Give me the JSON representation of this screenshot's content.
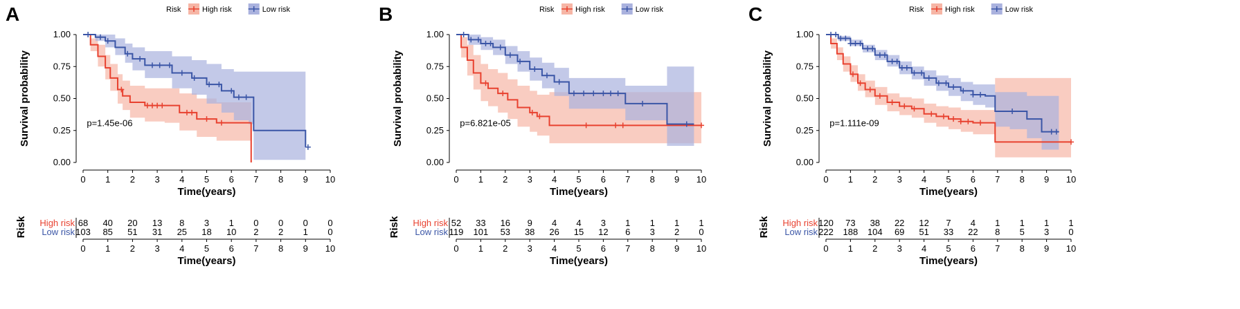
{
  "colors": {
    "high": "#e8412f",
    "low": "#3a55a6",
    "high_fill": "#f6b6a6",
    "low_fill": "#aab2de"
  },
  "chart_data": [
    {
      "type": "line",
      "panel": "A",
      "legend": {
        "title": "Risk",
        "entries": [
          "High risk",
          "Low risk"
        ],
        "placement": "top"
      },
      "xlabel": "Time(years)",
      "ylabel": "Survival probability",
      "xlim": [
        0,
        10
      ],
      "ylim": [
        0,
        1
      ],
      "xticks": [
        "0",
        "1",
        "2",
        "3",
        "4",
        "5",
        "6",
        "7",
        "8",
        "9",
        "10"
      ],
      "yticks": [
        "0.00",
        "0.25",
        "0.50",
        "0.75",
        "1.00"
      ],
      "pvalue": "p=1.45e-06",
      "series": [
        {
          "name": "High risk",
          "x": [
            0,
            0.3,
            0.6,
            0.9,
            1.1,
            1.4,
            1.6,
            1.9,
            2.5,
            3.3,
            3.9,
            4.6,
            5.4,
            6.0,
            6.75,
            6.8
          ],
          "y": [
            1.0,
            0.92,
            0.83,
            0.74,
            0.66,
            0.57,
            0.52,
            0.47,
            0.445,
            0.445,
            0.39,
            0.34,
            0.31,
            0.31,
            0.31,
            0.0
          ],
          "lower": [
            1.0,
            0.87,
            0.75,
            0.65,
            0.56,
            0.46,
            0.41,
            0.35,
            0.32,
            0.31,
            0.25,
            0.2,
            0.17,
            0.17,
            0.17,
            0.0
          ],
          "upper": [
            1.0,
            0.97,
            0.92,
            0.84,
            0.77,
            0.69,
            0.64,
            0.6,
            0.58,
            0.58,
            0.54,
            0.5,
            0.47,
            0.47,
            0.47,
            0.0
          ],
          "censor_x": [
            1.55,
            2.6,
            2.8,
            3.0,
            3.2,
            4.2,
            4.4,
            5.0,
            5.6
          ]
        },
        {
          "name": "Low risk",
          "x": [
            0,
            0.5,
            0.9,
            1.3,
            1.7,
            2.0,
            2.5,
            3.1,
            3.6,
            4.4,
            5.0,
            5.6,
            6.1,
            6.7,
            6.9,
            9.0
          ],
          "y": [
            1.0,
            0.98,
            0.95,
            0.9,
            0.85,
            0.81,
            0.76,
            0.76,
            0.7,
            0.66,
            0.61,
            0.56,
            0.51,
            0.51,
            0.25,
            0.12
          ],
          "lower": [
            1.0,
            0.95,
            0.9,
            0.84,
            0.78,
            0.72,
            0.66,
            0.66,
            0.58,
            0.53,
            0.46,
            0.39,
            0.33,
            0.3,
            0.02,
            0.02
          ],
          "upper": [
            1.0,
            1.0,
            1.0,
            0.97,
            0.93,
            0.9,
            0.87,
            0.87,
            0.83,
            0.8,
            0.77,
            0.73,
            0.71,
            0.71,
            0.71,
            0.71
          ],
          "censor_x": [
            0.2,
            0.7,
            1.0,
            1.8,
            2.3,
            2.8,
            3.1,
            3.5,
            4.0,
            4.5,
            5.1,
            5.5,
            6.0,
            6.3,
            6.6,
            9.1
          ]
        }
      ],
      "risk_table": {
        "title": "Risk",
        "xlabel": "Time(years)",
        "groups": [
          "High risk",
          "Low risk"
        ],
        "times": [
          "0",
          "1",
          "2",
          "3",
          "4",
          "5",
          "6",
          "7",
          "8",
          "9",
          "10"
        ],
        "high": [
          "68",
          "40",
          "20",
          "13",
          "8",
          "3",
          "1",
          "0",
          "0",
          "0",
          "0"
        ],
        "low": [
          "103",
          "85",
          "51",
          "31",
          "25",
          "18",
          "10",
          "2",
          "2",
          "1",
          "0"
        ]
      }
    },
    {
      "type": "line",
      "panel": "B",
      "legend": {
        "title": "Risk",
        "entries": [
          "High risk",
          "Low risk"
        ],
        "placement": "top"
      },
      "xlabel": "Time(years)",
      "ylabel": "Survival probability",
      "xlim": [
        0,
        10
      ],
      "ylim": [
        0,
        1
      ],
      "xticks": [
        "0",
        "1",
        "2",
        "3",
        "4",
        "5",
        "6",
        "7",
        "8",
        "9",
        "10"
      ],
      "yticks": [
        "0.00",
        "0.25",
        "0.50",
        "0.75",
        "1.00"
      ],
      "pvalue": "p=6.821e-05",
      "series": [
        {
          "name": "High risk",
          "x": [
            0,
            0.2,
            0.45,
            0.7,
            1.0,
            1.3,
            1.7,
            2.1,
            2.5,
            3.0,
            3.3,
            3.8,
            10.0
          ],
          "y": [
            1.0,
            0.9,
            0.8,
            0.7,
            0.62,
            0.58,
            0.54,
            0.49,
            0.43,
            0.39,
            0.36,
            0.29,
            0.29
          ],
          "lower": [
            1.0,
            0.82,
            0.68,
            0.57,
            0.48,
            0.44,
            0.39,
            0.34,
            0.28,
            0.24,
            0.21,
            0.15,
            0.15
          ],
          "upper": [
            1.0,
            0.98,
            0.92,
            0.84,
            0.77,
            0.73,
            0.7,
            0.65,
            0.6,
            0.56,
            0.53,
            0.55,
            0.55
          ],
          "censor_x": [
            1.2,
            1.9,
            3.1,
            3.4,
            5.3,
            6.5,
            6.8,
            10.0
          ]
        },
        {
          "name": "Low risk",
          "x": [
            0,
            0.5,
            1.0,
            1.5,
            2.0,
            2.5,
            3.0,
            3.5,
            4.0,
            4.6,
            6.9,
            8.6,
            9.7
          ],
          "y": [
            1.0,
            0.96,
            0.93,
            0.9,
            0.84,
            0.79,
            0.73,
            0.68,
            0.63,
            0.54,
            0.46,
            0.3,
            0.3
          ],
          "lower": [
            1.0,
            0.92,
            0.88,
            0.84,
            0.77,
            0.71,
            0.64,
            0.58,
            0.52,
            0.42,
            0.33,
            0.13,
            0.13
          ],
          "upper": [
            1.0,
            1.0,
            0.98,
            0.96,
            0.91,
            0.87,
            0.82,
            0.78,
            0.74,
            0.66,
            0.6,
            0.75,
            0.75
          ],
          "censor_x": [
            0.3,
            0.6,
            0.9,
            1.2,
            1.4,
            1.8,
            2.2,
            2.6,
            3.2,
            3.7,
            4.2,
            4.8,
            5.2,
            5.6,
            6.0,
            6.3,
            6.6,
            7.6,
            9.4
          ]
        }
      ],
      "risk_table": {
        "title": "Risk",
        "xlabel": "Time(years)",
        "groups": [
          "High risk",
          "Low risk"
        ],
        "times": [
          "0",
          "1",
          "2",
          "3",
          "4",
          "5",
          "6",
          "7",
          "8",
          "9",
          "10"
        ],
        "high": [
          "52",
          "33",
          "16",
          "9",
          "4",
          "4",
          "3",
          "1",
          "1",
          "1",
          "1"
        ],
        "low": [
          "119",
          "101",
          "53",
          "38",
          "26",
          "15",
          "12",
          "6",
          "3",
          "2",
          "0"
        ]
      }
    },
    {
      "type": "line",
      "panel": "C",
      "legend": {
        "title": "Risk",
        "entries": [
          "High risk",
          "Low risk"
        ],
        "placement": "top"
      },
      "xlabel": "Time(years)",
      "ylabel": "Survival probability",
      "xlim": [
        0,
        10
      ],
      "ylim": [
        0,
        1
      ],
      "xticks": [
        "0",
        "1",
        "2",
        "3",
        "4",
        "5",
        "6",
        "7",
        "8",
        "9",
        "10"
      ],
      "yticks": [
        "0.00",
        "0.25",
        "0.50",
        "0.75",
        "1.00"
      ],
      "pvalue": "p=1.111e-09",
      "series": [
        {
          "name": "High risk",
          "x": [
            0,
            0.2,
            0.45,
            0.7,
            1.0,
            1.3,
            1.6,
            2.0,
            2.5,
            3.0,
            3.5,
            4.0,
            4.5,
            5.0,
            5.5,
            6.0,
            6.9,
            10.0
          ],
          "y": [
            1.0,
            0.93,
            0.85,
            0.77,
            0.69,
            0.62,
            0.57,
            0.52,
            0.47,
            0.44,
            0.42,
            0.38,
            0.36,
            0.34,
            0.32,
            0.31,
            0.16,
            0.16
          ],
          "lower": [
            1.0,
            0.89,
            0.8,
            0.71,
            0.63,
            0.56,
            0.51,
            0.45,
            0.4,
            0.37,
            0.35,
            0.31,
            0.28,
            0.26,
            0.24,
            0.22,
            0.04,
            0.04
          ],
          "upper": [
            1.0,
            0.97,
            0.9,
            0.83,
            0.76,
            0.69,
            0.64,
            0.59,
            0.54,
            0.51,
            0.5,
            0.46,
            0.44,
            0.43,
            0.41,
            0.41,
            0.66,
            0.66
          ],
          "censor_x": [
            1.1,
            1.4,
            1.8,
            2.2,
            2.7,
            3.2,
            3.6,
            4.3,
            4.8,
            5.2,
            5.5,
            5.8,
            6.3,
            10.0
          ]
        },
        {
          "name": "Low risk",
          "x": [
            0,
            0.5,
            1.0,
            1.5,
            2.0,
            2.5,
            3.0,
            3.5,
            4.0,
            4.5,
            5.0,
            5.5,
            6.0,
            6.5,
            6.9,
            7.5,
            8.2,
            8.8,
            9.0,
            9.5
          ],
          "y": [
            1.0,
            0.97,
            0.93,
            0.89,
            0.84,
            0.79,
            0.74,
            0.7,
            0.66,
            0.62,
            0.59,
            0.56,
            0.53,
            0.52,
            0.4,
            0.4,
            0.34,
            0.24,
            0.24,
            0.24
          ],
          "lower": [
            1.0,
            0.95,
            0.91,
            0.86,
            0.8,
            0.75,
            0.69,
            0.65,
            0.6,
            0.56,
            0.52,
            0.48,
            0.45,
            0.43,
            0.28,
            0.26,
            0.19,
            0.1,
            0.1,
            0.1
          ],
          "upper": [
            1.0,
            0.99,
            0.96,
            0.92,
            0.88,
            0.84,
            0.79,
            0.75,
            0.72,
            0.68,
            0.66,
            0.63,
            0.61,
            0.61,
            0.55,
            0.55,
            0.52,
            0.52,
            0.52,
            0.52
          ],
          "censor_x": [
            0.2,
            0.4,
            0.6,
            0.8,
            1.0,
            1.2,
            1.4,
            1.7,
            1.9,
            2.2,
            2.4,
            2.7,
            2.9,
            3.1,
            3.3,
            3.6,
            3.9,
            4.2,
            4.6,
            4.9,
            5.2,
            5.6,
            6.0,
            6.3,
            7.6,
            9.2,
            9.4
          ]
        }
      ],
      "risk_table": {
        "title": "Risk",
        "xlabel": "Time(years)",
        "groups": [
          "High risk",
          "Low risk"
        ],
        "times": [
          "0",
          "1",
          "2",
          "3",
          "4",
          "5",
          "6",
          "7",
          "8",
          "9",
          "10"
        ],
        "high": [
          "120",
          "73",
          "38",
          "22",
          "12",
          "7",
          "4",
          "1",
          "1",
          "1",
          "1"
        ],
        "low": [
          "222",
          "188",
          "104",
          "69",
          "51",
          "33",
          "22",
          "8",
          "5",
          "3",
          "0"
        ]
      }
    }
  ]
}
